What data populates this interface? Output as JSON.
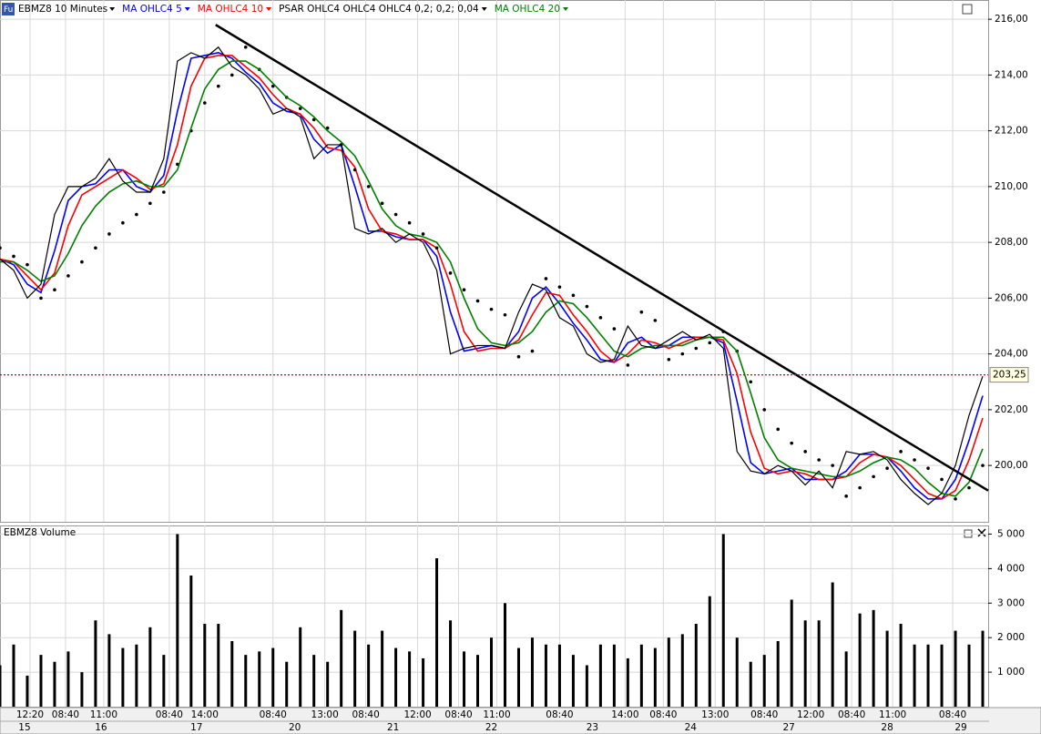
{
  "chart_data": {
    "type": "line",
    "icon": "Fu",
    "title": "EBMZ8 10 Minutes",
    "x": [
      0,
      5,
      10,
      15,
      20,
      25,
      30,
      35,
      40,
      45,
      50,
      55,
      60,
      65,
      70,
      75,
      80,
      85,
      90,
      95,
      100,
      105,
      110,
      115,
      120,
      125,
      130,
      135,
      140,
      145,
      150,
      155,
      160,
      165,
      170,
      175,
      180,
      185,
      190,
      195,
      200,
      205,
      210,
      215,
      220,
      225,
      230,
      235,
      240,
      245,
      250,
      255,
      260,
      265,
      270,
      275,
      280,
      285,
      290,
      295,
      300,
      305,
      310,
      315,
      320,
      325,
      330,
      335,
      340,
      345,
      350,
      355,
      360
    ],
    "price": [
      207.4,
      207.0,
      206.0,
      206.5,
      209.0,
      210.0,
      210.0,
      210.3,
      211.0,
      210.2,
      209.8,
      209.8,
      211.0,
      214.5,
      214.8,
      214.6,
      215.0,
      214.3,
      214.0,
      213.5,
      212.6,
      212.8,
      212.5,
      211.0,
      211.5,
      211.5,
      208.5,
      208.3,
      208.5,
      208.0,
      208.3,
      208.0,
      207.0,
      204.0,
      204.2,
      204.3,
      204.3,
      204.2,
      205.5,
      206.5,
      206.3,
      205.3,
      205.0,
      204.0,
      203.7,
      203.8,
      205.0,
      204.3,
      204.2,
      204.5,
      204.8,
      204.5,
      204.7,
      204.2,
      200.5,
      199.8,
      199.7,
      200.0,
      199.8,
      199.3,
      199.8,
      199.2,
      200.5,
      200.4,
      200.5,
      200.2,
      199.5,
      199.0,
      198.6,
      199.0,
      200.0,
      201.8,
      203.2
    ],
    "price_color": "#000000",
    "series": [
      {
        "name": "MA OHLC4  5",
        "color": "#0000ff",
        "style": "line",
        "values": [
          207.4,
          207.2,
          206.5,
          206.2,
          207.7,
          209.5,
          210.0,
          210.1,
          210.6,
          210.6,
          210.0,
          209.8,
          210.4,
          212.7,
          214.6,
          214.7,
          214.8,
          214.6,
          214.1,
          213.7,
          213.0,
          212.7,
          212.6,
          211.7,
          211.2,
          211.5,
          210.0,
          208.4,
          208.4,
          208.2,
          208.1,
          208.1,
          207.5,
          205.5,
          204.1,
          204.2,
          204.3,
          204.2,
          204.8,
          206.0,
          206.4,
          205.8,
          205.1,
          204.5,
          203.8,
          203.7,
          204.4,
          204.6,
          204.2,
          204.3,
          204.6,
          204.6,
          204.6,
          204.4,
          202.3,
          200.1,
          199.7,
          199.8,
          199.9,
          199.5,
          199.5,
          199.5,
          199.8,
          200.4,
          200.4,
          200.3,
          199.8,
          199.2,
          198.8,
          198.8,
          199.5,
          200.9,
          202.5
        ]
      },
      {
        "name": "MA OHLC4  10",
        "color": "#ff0000",
        "style": "line",
        "values": [
          207.4,
          207.3,
          206.8,
          206.3,
          206.9,
          208.6,
          209.7,
          210.0,
          210.3,
          210.6,
          210.3,
          209.9,
          210.1,
          211.5,
          213.6,
          214.6,
          214.7,
          214.7,
          214.3,
          213.9,
          213.3,
          212.8,
          212.6,
          212.1,
          211.4,
          211.3,
          210.7,
          209.2,
          208.4,
          208.3,
          208.1,
          208.1,
          207.8,
          206.5,
          204.8,
          204.1,
          204.2,
          204.2,
          204.5,
          205.4,
          206.2,
          206.1,
          205.4,
          204.8,
          204.1,
          203.7,
          204.0,
          204.5,
          204.4,
          204.2,
          204.4,
          204.6,
          204.6,
          204.5,
          203.3,
          201.2,
          199.9,
          199.7,
          199.8,
          199.7,
          199.5,
          199.5,
          199.6,
          200.1,
          200.4,
          200.3,
          200.0,
          199.5,
          199.0,
          198.8,
          199.1,
          200.2,
          201.7
        ]
      },
      {
        "name": "PSAR OHLC4 OHLC4 OHLC4  0,2; 0,2; 0,04",
        "color": "#000000",
        "style": "dots",
        "values": [
          207.8,
          207.5,
          207.2,
          206.0,
          206.3,
          206.8,
          207.3,
          207.8,
          208.3,
          208.7,
          209.0,
          209.4,
          209.8,
          210.8,
          212.0,
          213.0,
          213.6,
          214.0,
          215.0,
          214.2,
          213.6,
          213.2,
          212.8,
          212.4,
          212.1,
          211.5,
          210.6,
          210.0,
          209.4,
          209.0,
          208.7,
          208.3,
          207.8,
          206.9,
          206.3,
          205.9,
          205.6,
          205.4,
          203.9,
          204.1,
          206.7,
          206.4,
          206.1,
          205.7,
          205.3,
          204.9,
          203.6,
          205.5,
          205.2,
          203.8,
          204.0,
          204.2,
          204.4,
          204.8,
          204.1,
          203.0,
          202.0,
          201.3,
          200.8,
          200.5,
          200.2,
          200.0,
          198.9,
          199.2,
          199.6,
          199.9,
          200.5,
          200.2,
          199.9,
          199.5,
          198.8,
          199.2,
          200.0
        ]
      },
      {
        "name": "MA OHLC4  20",
        "color": "#008000",
        "style": "line",
        "values": [
          207.3,
          207.3,
          207.0,
          206.6,
          206.8,
          207.6,
          208.6,
          209.3,
          209.8,
          210.1,
          210.2,
          210.0,
          210.0,
          210.6,
          212.1,
          213.5,
          214.2,
          214.5,
          214.5,
          214.2,
          213.7,
          213.2,
          212.9,
          212.5,
          212.0,
          211.6,
          211.1,
          210.2,
          209.2,
          208.6,
          208.3,
          208.2,
          208.0,
          207.3,
          206.0,
          204.9,
          204.4,
          204.3,
          204.4,
          204.8,
          205.5,
          205.9,
          205.8,
          205.3,
          204.7,
          204.1,
          203.9,
          204.2,
          204.3,
          204.3,
          204.3,
          204.5,
          204.6,
          204.6,
          204.1,
          202.6,
          201.0,
          200.2,
          199.9,
          199.8,
          199.7,
          199.6,
          199.6,
          199.8,
          200.1,
          200.3,
          200.2,
          199.9,
          199.4,
          199.0,
          198.9,
          199.4,
          200.6
        ]
      }
    ],
    "xlim": [
      0,
      362
    ],
    "xticks": [
      {
        "value": 11,
        "label": "12:20"
      },
      {
        "value": 24,
        "label": "08:40"
      },
      {
        "value": 38,
        "label": "11:00"
      },
      {
        "value": 62,
        "label": "08:40"
      },
      {
        "value": 75,
        "label": "14:00"
      },
      {
        "value": 100,
        "label": "08:40"
      },
      {
        "value": 119,
        "label": "13:00"
      },
      {
        "value": 134,
        "label": "08:40"
      },
      {
        "value": 153,
        "label": "12:00"
      },
      {
        "value": 168,
        "label": "08:40"
      },
      {
        "value": 182,
        "label": "11:00"
      },
      {
        "value": 205,
        "label": "08:40"
      },
      {
        "value": 229,
        "label": "14:00"
      },
      {
        "value": 243,
        "label": "08:40"
      },
      {
        "value": 262,
        "label": "13:00"
      },
      {
        "value": 280,
        "label": "08:40"
      },
      {
        "value": 297,
        "label": "12:00"
      },
      {
        "value": 312,
        "label": "08:40"
      },
      {
        "value": 327,
        "label": "11:00"
      },
      {
        "value": 349,
        "label": "08:40"
      }
    ],
    "date_ticks": [
      {
        "value": 9,
        "label": "15"
      },
      {
        "value": 37,
        "label": "16"
      },
      {
        "value": 72,
        "label": "17"
      },
      {
        "value": 108,
        "label": "20"
      },
      {
        "value": 144,
        "label": "21"
      },
      {
        "value": 180,
        "label": "22"
      },
      {
        "value": 217,
        "label": "23"
      },
      {
        "value": 253,
        "label": "24"
      },
      {
        "value": 289,
        "label": "27"
      },
      {
        "value": 325,
        "label": "28"
      },
      {
        "value": 352,
        "label": "29"
      }
    ],
    "ylim": [
      197.98,
      216.69
    ],
    "yticks": [
      {
        "value": 200,
        "label": "200,00"
      },
      {
        "value": 202,
        "label": "202,00"
      },
      {
        "value": 204,
        "label": "204,00"
      },
      {
        "value": 206,
        "label": "206,00"
      },
      {
        "value": 208,
        "label": "208,00"
      },
      {
        "value": 210,
        "label": "210,00"
      },
      {
        "value": 212,
        "label": "212,00"
      },
      {
        "value": 214,
        "label": "214,00"
      },
      {
        "value": 216,
        "label": "216,00"
      }
    ],
    "grid": true,
    "trendline": {
      "x": [
        79,
        362
      ],
      "y": [
        215.8,
        199.1
      ],
      "color": "#000000"
    },
    "last_price": {
      "value": 203.25,
      "label": "203,25",
      "color": "#e00000"
    },
    "volume": {
      "title": "EBMZ8 Volume",
      "color": "#000000",
      "values": [
        1200,
        1800,
        900,
        1500,
        1300,
        1600,
        1000,
        2500,
        2100,
        1700,
        1800,
        2300,
        1500,
        5000,
        3800,
        2400,
        2400,
        1900,
        1500,
        1600,
        1700,
        1300,
        2300,
        1500,
        1300,
        2800,
        2200,
        1800,
        2200,
        1700,
        1600,
        1400,
        4300,
        2500,
        1600,
        1500,
        2000,
        3000,
        1700,
        2000,
        1800,
        1800,
        1500,
        1200,
        1800,
        1800,
        1400,
        1800,
        1700,
        2000,
        2100,
        2400,
        3200,
        5000,
        2000,
        1300,
        1500,
        1900,
        3100,
        2500,
        2500,
        3600,
        1600,
        2700,
        2800,
        2200,
        2400,
        1800,
        1800,
        1800,
        2200,
        1800,
        2200
      ],
      "ylim": [
        0,
        5250
      ],
      "yticks": [
        {
          "value": 1000,
          "label": "1 000"
        },
        {
          "value": 2000,
          "label": "2 000"
        },
        {
          "value": 3000,
          "label": "3 000"
        },
        {
          "value": 4000,
          "label": "4 000"
        },
        {
          "value": 5000,
          "label": "5 000"
        }
      ]
    }
  }
}
